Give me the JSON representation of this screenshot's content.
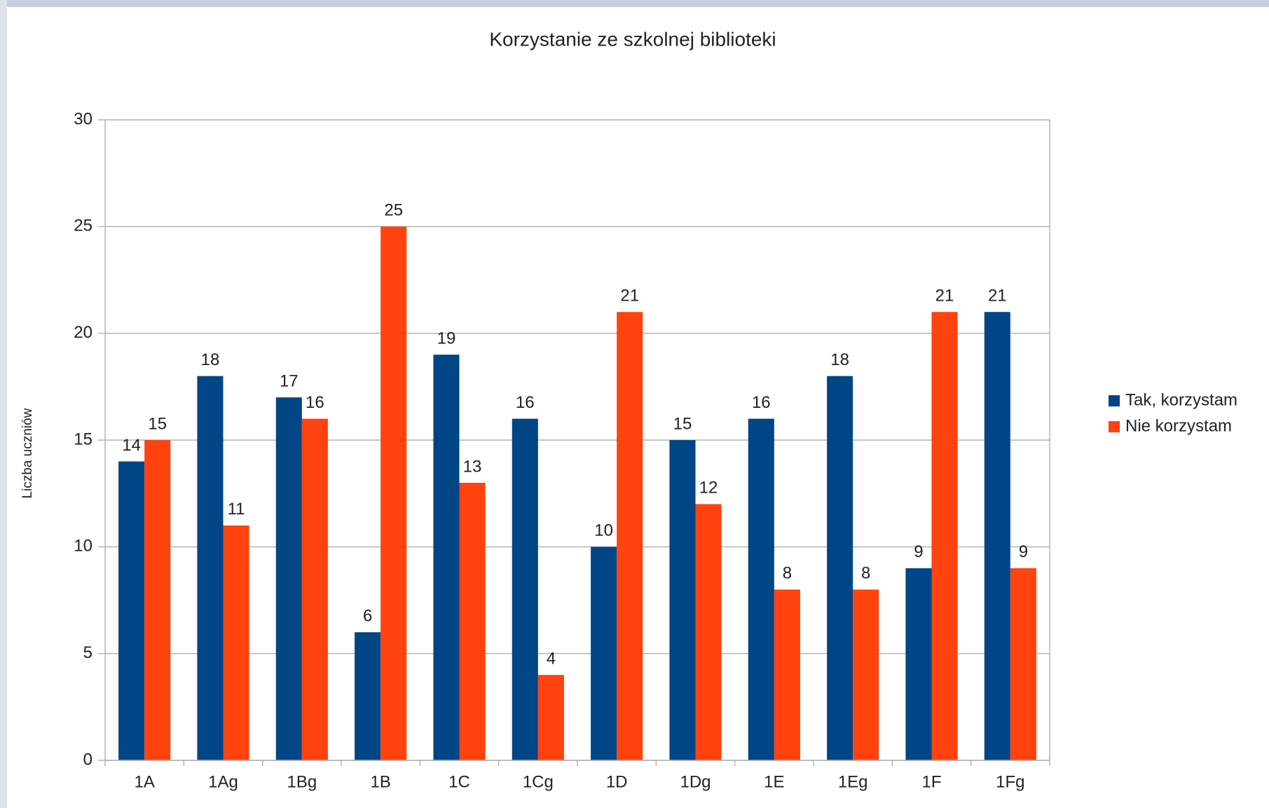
{
  "chart_data": {
    "type": "bar",
    "title": "Korzystanie ze szkolnej biblioteki",
    "ylabel": "Liczba uczniów",
    "categories": [
      "1A",
      "1Ag",
      "1Bg",
      "1B",
      "1C",
      "1Cg",
      "1D",
      "1Dg",
      "1E",
      "1Eg",
      "1F",
      "1Fg"
    ],
    "series": [
      {
        "name": "Tak, korzystam",
        "color": "#004586",
        "values": [
          14,
          18,
          17,
          6,
          19,
          16,
          10,
          15,
          16,
          18,
          9,
          21
        ]
      },
      {
        "name": "Nie korzystam",
        "color": "#ff420e",
        "values": [
          15,
          11,
          16,
          25,
          13,
          4,
          21,
          12,
          8,
          8,
          21,
          9
        ]
      }
    ],
    "ylim": [
      0,
      30
    ],
    "yticks": [
      0,
      5,
      10,
      15,
      20,
      25,
      30
    ],
    "grid": true,
    "legend": "right"
  }
}
